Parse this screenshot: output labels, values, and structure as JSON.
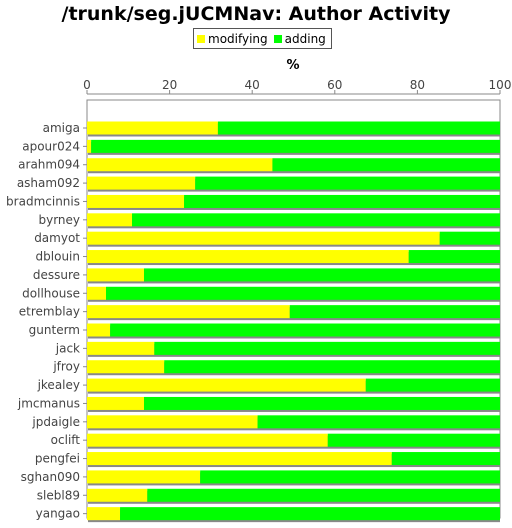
{
  "chart_data": {
    "type": "bar",
    "orientation": "horizontal",
    "stacked": true,
    "title": "/trunk/seg.jUCMNav: Author Activity",
    "xlabel": "%",
    "xlim": [
      0,
      100
    ],
    "xticks": [
      "0",
      "20",
      "40",
      "60",
      "80",
      "100"
    ],
    "grid": false,
    "legend_position": "top",
    "categories": [
      "amiga",
      "apour024",
      "arahm094",
      "asham092",
      "bradmcinnis",
      "byrney",
      "damyot",
      "dblouin",
      "dessure",
      "dollhouse",
      "etremblay",
      "gunterm",
      "jack",
      "jfroy",
      "jkealey",
      "jmcmanus",
      "jpdaigle",
      "oclift",
      "pengfei",
      "sghan090",
      "slebl89",
      "yangao"
    ],
    "series": [
      {
        "name": "modifying",
        "color": "#ffff00",
        "values": [
          31.7,
          1.0,
          44.9,
          26.2,
          23.5,
          10.9,
          85.4,
          77.9,
          13.8,
          4.6,
          49.1,
          5.6,
          16.3,
          18.7,
          67.5,
          13.8,
          41.3,
          58.3,
          73.8,
          27.4,
          14.6,
          8.0
        ]
      },
      {
        "name": "adding",
        "color": "#00ff00",
        "values": [
          68.3,
          99.0,
          55.1,
          73.8,
          76.5,
          89.1,
          14.6,
          22.1,
          86.2,
          95.4,
          50.9,
          94.4,
          83.7,
          81.3,
          32.5,
          86.2,
          58.7,
          41.7,
          26.2,
          72.6,
          85.4,
          92.0
        ]
      }
    ]
  }
}
